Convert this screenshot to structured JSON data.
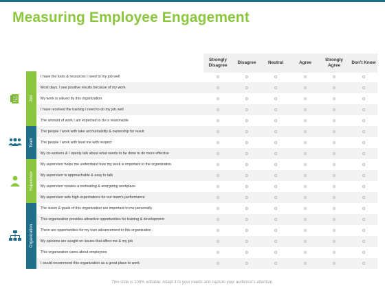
{
  "title": "Measuring Employee Engagement",
  "columns": [
    "Strongly Disagree",
    "Disagree",
    "Neutral",
    "Agree",
    "Strongly Agree",
    "Don't Know"
  ],
  "categories": [
    {
      "label": "Job",
      "color": "#8cc63f",
      "icon": "document-icon",
      "questions": [
        "I have the tools & resources I need to my job well",
        "Most days, I see positive results because of my work",
        "My work is valued by this organization",
        "I have received the training I need to do my job well",
        "The amount of work I am expected to do is reasonable"
      ]
    },
    {
      "label": "Team",
      "color": "#1f6f8b",
      "icon": "team-icon",
      "questions": [
        "The people I work with take accountability & ownership for result",
        "The people I work with treat me with respect",
        "My co-workers & I openly talk about what needs to be done to do more effective"
      ]
    },
    {
      "label": "Supervisor",
      "color": "#8cc63f",
      "icon": "person-icon",
      "questions": [
        "My supervisor helps me understand how my work is important to the organization",
        "My supervisor is approachable & easy to talk",
        "My supervisor creates a motivating & energizing workplace",
        "My supervisor sets high expectations for our team's performance"
      ]
    },
    {
      "label": "Organization",
      "color": "#1f6f8b",
      "icon": "org-chart-icon",
      "questions": [
        "The vision & goals of this organization are important to me personally",
        "This organization provides attractive opportunities for training & development",
        "There are opportunities for my own advancement in this organization",
        "My opinions are sought on issues that affect me & my job",
        "This organization cares about employees",
        "I would recommend this organization as a great place to work"
      ]
    }
  ],
  "footer": "This slide is 100% editable. Adapt it to your needs and capture your audience's attention."
}
